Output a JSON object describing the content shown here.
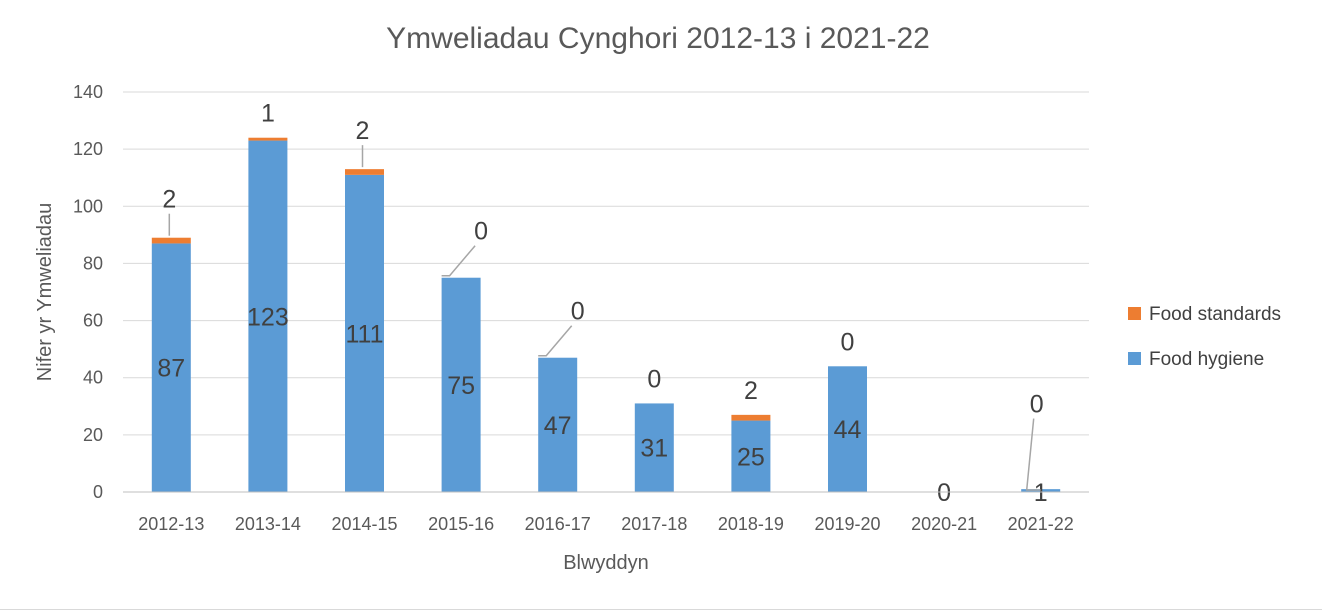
{
  "chart_data": {
    "type": "bar",
    "stacked": true,
    "title": "Ymweliadau Cynghori 2012-13 i 2021-22",
    "xlabel": "Blwyddyn",
    "ylabel": "Nifer yr Ymweliadau",
    "ylim": [
      0,
      140
    ],
    "yticks": [
      "0",
      "20",
      "40",
      "60",
      "80",
      "100",
      "120",
      "140"
    ],
    "grid": true,
    "legend_position": "right",
    "categories": [
      "2012-13",
      "2013-14",
      "2014-15",
      "2015-16",
      "2016-17",
      "2017-18",
      "2018-19",
      "2019-20",
      "2020-21",
      "2021-22"
    ],
    "series": [
      {
        "name": "Food hygiene",
        "color": "#5b9bd5",
        "values": [
          87,
          123,
          111,
          75,
          47,
          31,
          25,
          44,
          0,
          1
        ],
        "labels": [
          "87",
          "123",
          "111",
          "75",
          "47",
          "31",
          "25",
          "44",
          "0",
          "1"
        ]
      },
      {
        "name": "Food standards",
        "color": "#ed7d31",
        "values": [
          2,
          1,
          2,
          0,
          0,
          0,
          2,
          0,
          0,
          0
        ],
        "labels": [
          "2",
          "1",
          "2",
          "0",
          "0",
          "0",
          "2",
          "0",
          "",
          "0"
        ]
      }
    ]
  }
}
